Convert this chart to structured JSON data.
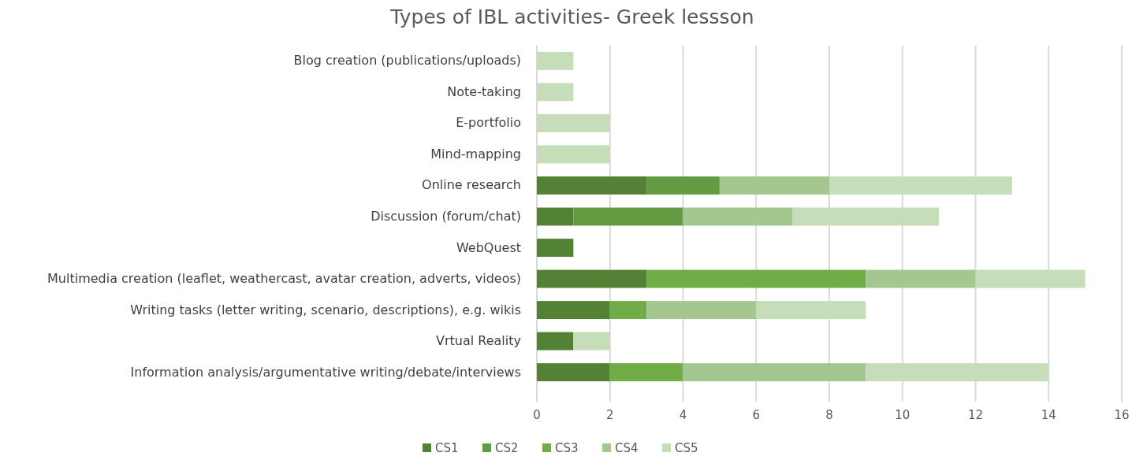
{
  "chart_data": {
    "type": "bar",
    "orientation": "horizontal",
    "stacked": true,
    "title": "Types of IBL activities- Greek lessson",
    "categories": [
      "Blog creation (publications/uploads)",
      "Note-taking",
      "E-portfolio ",
      "Mind-mapping",
      "Online research ",
      "Discussion (forum/chat) ",
      "WebQuest",
      "Multimedia creation (leaflet, weathercast, avatar creation, adverts, videos)",
      "Writing tasks (letter writing, scenario, descriptions), e.g. wikis",
      "Vrtual Reality",
      "Information analysis/argumentative writing/debate/interviews"
    ],
    "series": [
      {
        "name": "CS1",
        "color": "#548235",
        "values": [
          0,
          0,
          0,
          0,
          3,
          1,
          1,
          3,
          2,
          1,
          2
        ]
      },
      {
        "name": "CS2",
        "color": "#629b41",
        "values": [
          0,
          0,
          0,
          0,
          2,
          3,
          0,
          0,
          0,
          0,
          0
        ]
      },
      {
        "name": "CS3",
        "color": "#70ad47",
        "values": [
          0,
          0,
          0,
          0,
          0,
          0,
          0,
          6,
          1,
          0,
          2
        ]
      },
      {
        "name": "CS4",
        "color": "#a3c78e",
        "values": [
          0,
          0,
          0,
          0,
          3,
          3,
          0,
          3,
          3,
          0,
          5
        ]
      },
      {
        "name": "CS5",
        "color": "#c5ddb9",
        "values": [
          1,
          1,
          2,
          2,
          5,
          4,
          0,
          3,
          3,
          1,
          5
        ]
      }
    ],
    "xlim": [
      0,
      16
    ],
    "xticks": [
      0,
      2,
      4,
      6,
      8,
      10,
      12,
      14,
      16
    ],
    "grid": "x",
    "legend": "bottom"
  }
}
